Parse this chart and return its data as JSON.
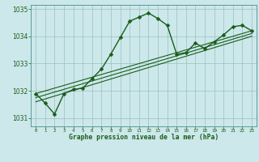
{
  "title": "Graphe pression niveau de la mer (hPa)",
  "bg_color": "#cce8ea",
  "grid_color": "#9abfc0",
  "line_color": "#1a5c1a",
  "xlim": [
    -0.5,
    23.5
  ],
  "ylim": [
    1030.7,
    1035.15
  ],
  "yticks": [
    1031,
    1032,
    1033,
    1034,
    1035
  ],
  "xticks": [
    0,
    1,
    2,
    3,
    4,
    5,
    6,
    7,
    8,
    9,
    10,
    11,
    12,
    13,
    14,
    15,
    16,
    17,
    18,
    19,
    20,
    21,
    22,
    23
  ],
  "series": [
    {
      "x": [
        0,
        1,
        2,
        3,
        4,
        5,
        6,
        7,
        8,
        9,
        10,
        11,
        12,
        13,
        14,
        15,
        16,
        17,
        18,
        19,
        20,
        21,
        22,
        23
      ],
      "y": [
        1031.9,
        1031.55,
        1031.15,
        1031.9,
        1032.05,
        1032.1,
        1032.45,
        1032.8,
        1033.35,
        1033.95,
        1034.55,
        1034.7,
        1034.85,
        1034.65,
        1034.4,
        1033.35,
        1033.4,
        1033.75,
        1033.55,
        1033.8,
        1034.05,
        1034.35,
        1034.4,
        1034.2
      ],
      "marker": "D",
      "markersize": 2.5,
      "linewidth": 1.0,
      "has_marker": true
    },
    {
      "x": [
        0,
        23
      ],
      "y": [
        1031.9,
        1034.2
      ],
      "marker": null,
      "markersize": 0,
      "linewidth": 0.8,
      "has_marker": false
    },
    {
      "x": [
        0,
        23
      ],
      "y": [
        1031.75,
        1034.1
      ],
      "marker": null,
      "markersize": 0,
      "linewidth": 0.8,
      "has_marker": false
    },
    {
      "x": [
        0,
        23
      ],
      "y": [
        1031.6,
        1034.0
      ],
      "marker": null,
      "markersize": 0,
      "linewidth": 0.8,
      "has_marker": false
    }
  ]
}
